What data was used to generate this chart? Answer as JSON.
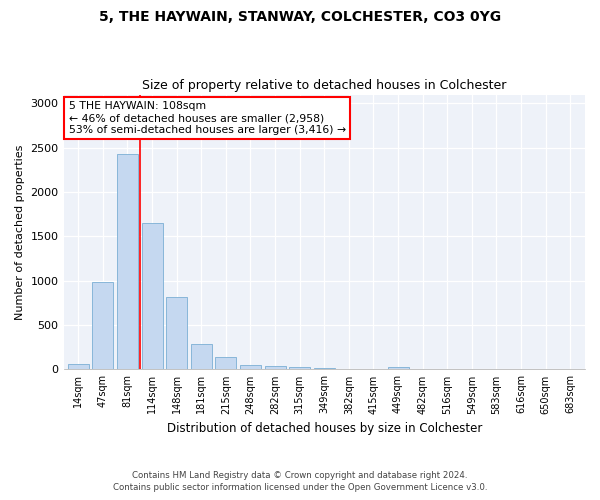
{
  "title1": "5, THE HAYWAIN, STANWAY, COLCHESTER, CO3 0YG",
  "title2": "Size of property relative to detached houses in Colchester",
  "xlabel": "Distribution of detached houses by size in Colchester",
  "ylabel": "Number of detached properties",
  "categories": [
    "14sqm",
    "47sqm",
    "81sqm",
    "114sqm",
    "148sqm",
    "181sqm",
    "215sqm",
    "248sqm",
    "282sqm",
    "315sqm",
    "349sqm",
    "382sqm",
    "415sqm",
    "449sqm",
    "482sqm",
    "516sqm",
    "549sqm",
    "583sqm",
    "616sqm",
    "650sqm",
    "683sqm"
  ],
  "values": [
    60,
    990,
    2430,
    1650,
    820,
    290,
    145,
    55,
    40,
    30,
    20,
    0,
    0,
    30,
    0,
    0,
    0,
    0,
    0,
    0,
    0
  ],
  "bar_color": "#c5d8f0",
  "bar_edge_color": "#7bafd4",
  "red_line_x": 2.5,
  "annotation_line1": "5 THE HAYWAIN: 108sqm",
  "annotation_line2": "← 46% of detached houses are smaller (2,958)",
  "annotation_line3": "53% of semi-detached houses are larger (3,416) →",
  "ylim": [
    0,
    3100
  ],
  "yticks": [
    0,
    500,
    1000,
    1500,
    2000,
    2500,
    3000
  ],
  "footer1": "Contains HM Land Registry data © Crown copyright and database right 2024.",
  "footer2": "Contains public sector information licensed under the Open Government Licence v3.0.",
  "background_color": "#eef2f9"
}
